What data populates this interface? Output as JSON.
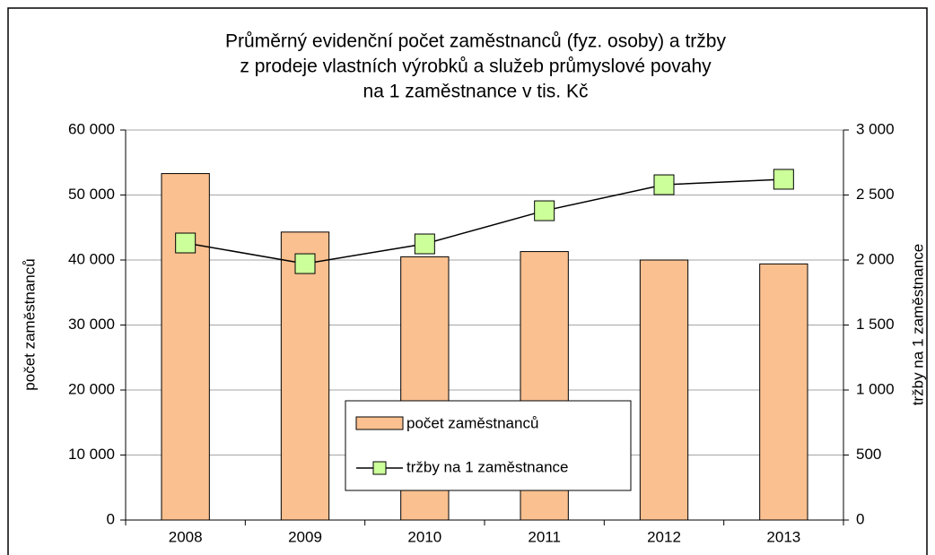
{
  "chart_data": {
    "type": "bar_line",
    "title": [
      "Průměrný evidenční počet zaměstnanců (fyz. osoby) a tržby",
      "z prodeje vlastních výrobků a služeb průmyslové povahy",
      "na 1 zaměstnance v tis. Kč"
    ],
    "y_label": "počet zaměstnanců",
    "y2_label": "tržby na 1 zaměstnance",
    "categories": [
      "2008",
      "2009",
      "2010",
      "2011",
      "2012",
      "2013"
    ],
    "series": [
      {
        "name": "počet zaměstnanců",
        "type": "bar",
        "color": "#fac090",
        "values": [
          53300,
          44300,
          40500,
          41300,
          40000,
          39400
        ]
      },
      {
        "name": "tržby na 1 zaměstnance",
        "type": "line",
        "axis": "y2",
        "color": "#ccff99",
        "values": [
          2131,
          1972,
          2124,
          2379,
          2579,
          2621
        ]
      }
    ],
    "ylim": [
      0,
      60000
    ],
    "yticks": [
      0,
      {
        "value": 10000,
        "label": "10 000"
      },
      {
        "value": 20000,
        "label": "20 000"
      },
      {
        "value": 30000,
        "label": "30 000"
      },
      {
        "value": 40000,
        "label": "40 000"
      },
      {
        "value": 50000,
        "label": "50 000"
      },
      {
        "value": 60000,
        "label": "60 000"
      }
    ],
    "y2lim": [
      0,
      3000
    ],
    "y2ticks": [
      0,
      500,
      {
        "value": 1000,
        "label": "1 000"
      },
      {
        "value": 1500,
        "label": "1 500"
      },
      {
        "value": 2000,
        "label": "2 000"
      },
      {
        "value": 2500,
        "label": "2 500"
      },
      {
        "value": 3000,
        "label": "3 000"
      }
    ],
    "grid": true
  }
}
